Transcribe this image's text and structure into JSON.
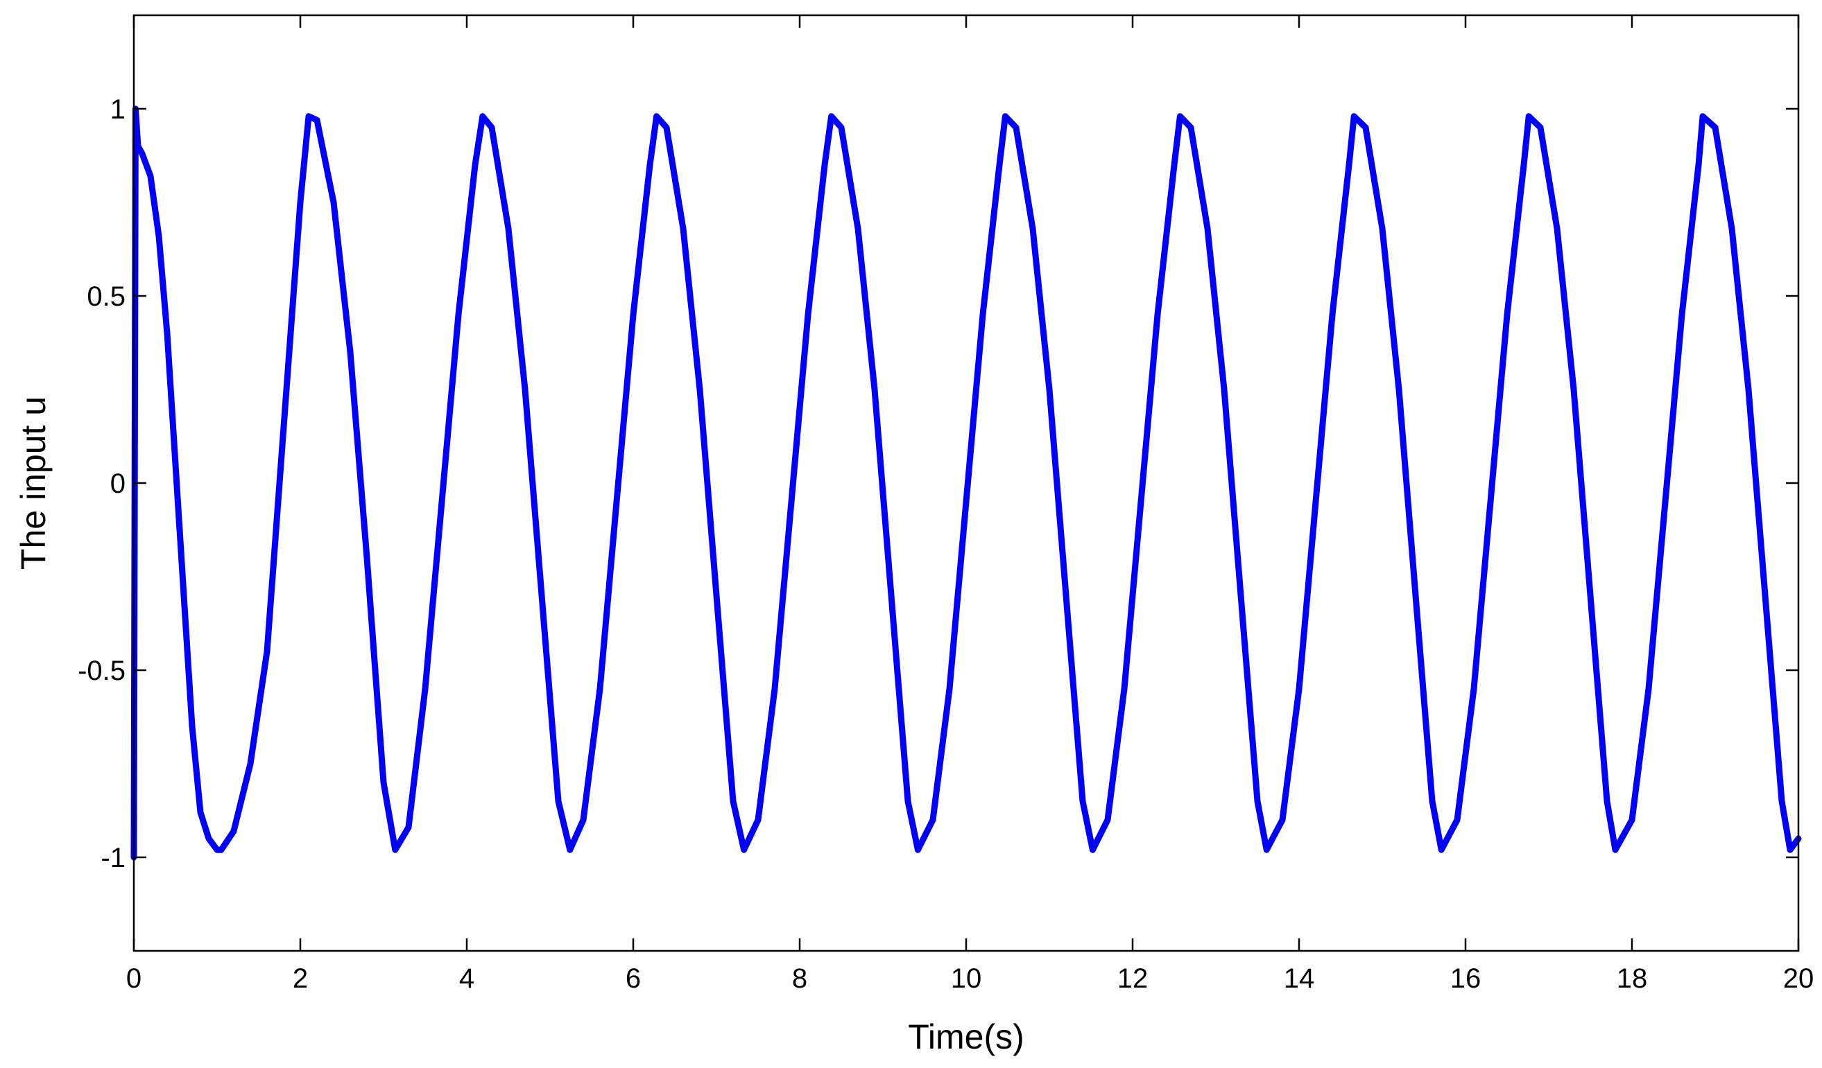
{
  "chart_data": {
    "type": "line",
    "title": "",
    "xlabel": "Time(s)",
    "ylabel": "The input u",
    "xlim": [
      0,
      20
    ],
    "ylim": [
      -1.25,
      1.25
    ],
    "xticks": [
      "0",
      "2",
      "4",
      "6",
      "8",
      "10",
      "12",
      "14",
      "16",
      "18",
      "20"
    ],
    "yticks": [
      "1",
      "0.5",
      "0",
      "-0.5",
      "-1"
    ],
    "grid": false,
    "legend": "none",
    "series": [
      {
        "color": "#0000ff",
        "description_of_shape": "",
        "x": [
          0,
          0.02,
          0.05,
          0.1,
          0.2,
          0.3,
          0.4,
          0.5,
          0.6,
          0.7,
          0.8,
          0.9,
          1.0,
          1.05,
          1.2,
          1.4,
          1.6,
          1.8,
          2.0,
          2.1,
          2.2,
          2.4,
          2.6,
          2.8,
          3.0,
          3.14,
          3.3,
          3.5,
          3.7,
          3.9,
          4.1,
          4.19,
          4.3,
          4.5,
          4.7,
          4.9,
          5.1,
          5.24,
          5.4,
          5.6,
          5.8,
          6.0,
          6.2,
          6.28,
          6.4,
          6.6,
          6.8,
          7.0,
          7.2,
          7.33,
          7.5,
          7.7,
          7.9,
          8.1,
          8.3,
          8.38,
          8.5,
          8.7,
          8.9,
          9.1,
          9.3,
          9.42,
          9.6,
          9.8,
          10.0,
          10.2,
          10.4,
          10.47,
          10.6,
          10.8,
          11.0,
          11.2,
          11.4,
          11.52,
          11.7,
          11.9,
          12.1,
          12.3,
          12.5,
          12.57,
          12.7,
          12.9,
          13.1,
          13.3,
          13.5,
          13.61,
          13.8,
          14.0,
          14.2,
          14.4,
          14.6,
          14.66,
          14.8,
          15.0,
          15.2,
          15.4,
          15.6,
          15.71,
          15.9,
          16.1,
          16.3,
          16.5,
          16.7,
          16.76,
          16.9,
          17.1,
          17.3,
          17.5,
          17.7,
          17.8,
          18.0,
          18.2,
          18.4,
          18.6,
          18.8,
          18.85,
          19.0,
          19.2,
          19.4,
          19.6,
          19.8,
          19.9,
          20.0
        ],
        "y": [
          -1.0,
          1.0,
          0.9,
          0.88,
          0.82,
          0.66,
          0.4,
          0.05,
          -0.3,
          -0.65,
          -0.88,
          -0.95,
          -0.98,
          -0.98,
          -0.93,
          -0.75,
          -0.45,
          0.15,
          0.75,
          0.98,
          0.97,
          0.75,
          0.35,
          -0.2,
          -0.8,
          -0.98,
          -0.92,
          -0.55,
          -0.05,
          0.45,
          0.85,
          0.98,
          0.95,
          0.68,
          0.25,
          -0.3,
          -0.85,
          -0.98,
          -0.9,
          -0.55,
          -0.05,
          0.45,
          0.85,
          0.98,
          0.95,
          0.68,
          0.25,
          -0.3,
          -0.85,
          -0.98,
          -0.9,
          -0.55,
          -0.05,
          0.45,
          0.85,
          0.98,
          0.95,
          0.68,
          0.25,
          -0.3,
          -0.85,
          -0.98,
          -0.9,
          -0.55,
          -0.05,
          0.45,
          0.85,
          0.98,
          0.95,
          0.68,
          0.25,
          -0.3,
          -0.85,
          -0.98,
          -0.9,
          -0.55,
          -0.05,
          0.45,
          0.85,
          0.98,
          0.95,
          0.68,
          0.25,
          -0.3,
          -0.85,
          -0.98,
          -0.9,
          -0.55,
          -0.05,
          0.45,
          0.85,
          0.98,
          0.95,
          0.68,
          0.25,
          -0.3,
          -0.85,
          -0.98,
          -0.9,
          -0.55,
          -0.05,
          0.45,
          0.85,
          0.98,
          0.95,
          0.68,
          0.25,
          -0.3,
          -0.85,
          -0.98,
          -0.9,
          -0.55,
          -0.05,
          0.45,
          0.85,
          0.98,
          0.95,
          0.68,
          0.25,
          -0.3,
          -0.85,
          -0.98,
          -0.95
        ]
      }
    ]
  }
}
